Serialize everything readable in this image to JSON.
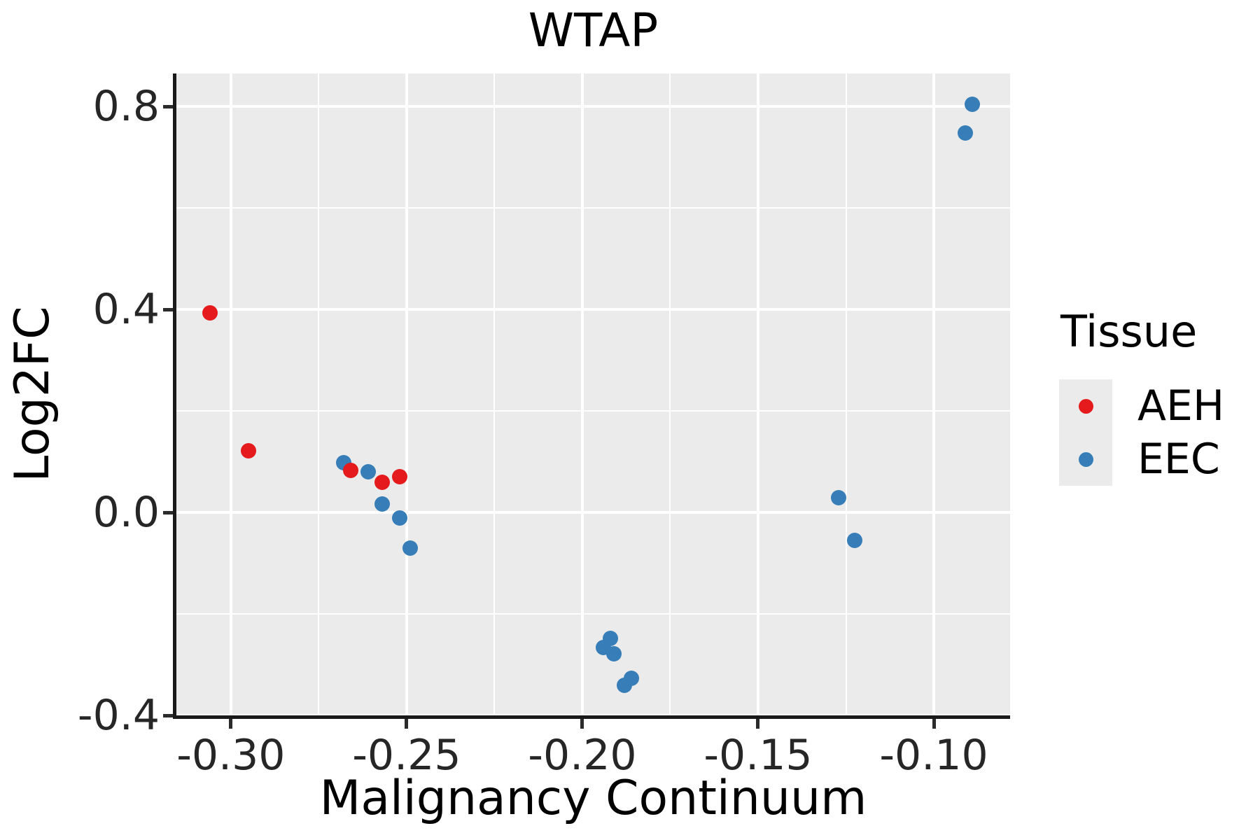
{
  "title": "WTAP",
  "chart_data": {
    "type": "scatter",
    "title": "WTAP",
    "xlabel": "Malignancy Continuum",
    "ylabel": "Log2FC",
    "xlim": [
      -0.3155,
      -0.0783
    ],
    "ylim": [
      -0.4,
      0.865
    ],
    "grid": true,
    "x_major_ticks": [
      -0.3,
      -0.25,
      -0.2,
      -0.15,
      -0.1
    ],
    "x_tick_labels": [
      "-0.30",
      "-0.25",
      "-0.20",
      "-0.15",
      "-0.10"
    ],
    "x_minor_ticks": [
      -0.275,
      -0.225,
      -0.175,
      -0.125
    ],
    "y_major_ticks": [
      0.8,
      0.4,
      0.0,
      -0.4
    ],
    "y_tick_labels": [
      "0.8",
      "0.4",
      "0.0",
      "-0.4"
    ],
    "y_minor_ticks": [
      0.6,
      0.2,
      -0.2
    ],
    "legend_position": "right",
    "legend_title": "Tissue",
    "series": [
      {
        "name": "EEC",
        "color": "#377EB8",
        "points": [
          [
            -0.268,
            0.098
          ],
          [
            -0.261,
            0.08
          ],
          [
            -0.257,
            0.017
          ],
          [
            -0.252,
            -0.011
          ],
          [
            -0.249,
            -0.07
          ],
          [
            -0.194,
            -0.266
          ],
          [
            -0.192,
            -0.248
          ],
          [
            -0.191,
            -0.279
          ],
          [
            -0.186,
            -0.327
          ],
          [
            -0.188,
            -0.341
          ],
          [
            -0.127,
            0.029
          ],
          [
            -0.1225,
            -0.055
          ],
          [
            -0.091,
            0.748
          ],
          [
            -0.089,
            0.804
          ]
        ]
      },
      {
        "name": "AEH",
        "color": "#E41A1C",
        "points": [
          [
            -0.306,
            0.393
          ],
          [
            -0.295,
            0.122
          ],
          [
            -0.266,
            0.083
          ],
          [
            -0.257,
            0.059
          ],
          [
            -0.252,
            0.07
          ]
        ]
      }
    ]
  },
  "legend": {
    "title": "Tissue",
    "items": [
      {
        "label": "AEH",
        "color": "#E41A1C"
      },
      {
        "label": "EEC",
        "color": "#377EB8"
      }
    ]
  },
  "colors": {
    "panel_background": "#EBEBEB",
    "grid": "#FFFFFF",
    "axis": "#1A1A1A",
    "aeh": "#E41A1C",
    "eec": "#377EB8"
  }
}
